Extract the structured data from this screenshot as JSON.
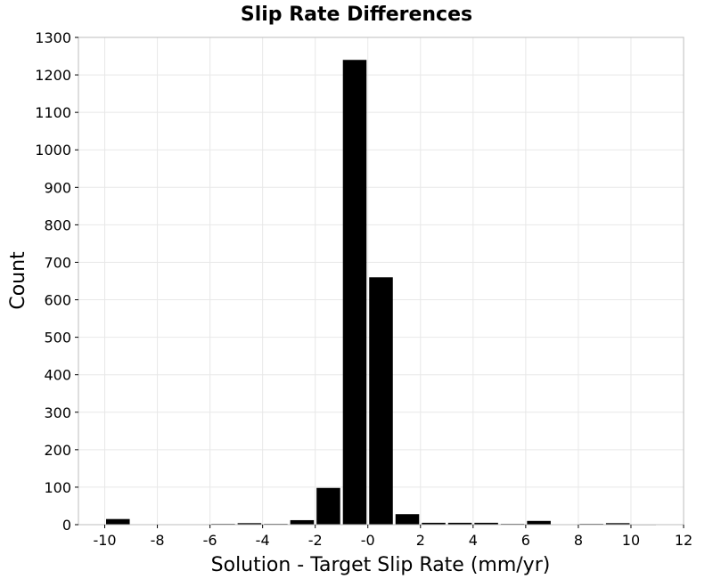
{
  "chart_data": {
    "type": "bar",
    "title": "Slip Rate Differences",
    "xlabel": "Solution - Target Slip Rate (mm/yr)",
    "ylabel": "Count",
    "xlim": [
      -11,
      12
    ],
    "ylim": [
      0,
      1300
    ],
    "grid": true,
    "xticks": [
      -10,
      -8,
      -6,
      -4,
      -2,
      0,
      2,
      4,
      6,
      8,
      10,
      12
    ],
    "xtick_labels": [
      "-10",
      "-8",
      "-6",
      "-4",
      "-2",
      "-0",
      "2",
      "4",
      "6",
      "8",
      "10",
      "12"
    ],
    "yticks": [
      0,
      100,
      200,
      300,
      400,
      500,
      600,
      700,
      800,
      900,
      1000,
      1100,
      1200,
      1300
    ],
    "bin_width": 1,
    "bins": [
      {
        "x": -9.5,
        "value": 15
      },
      {
        "x": -8.5,
        "value": 0
      },
      {
        "x": -7.5,
        "value": 0
      },
      {
        "x": -6.5,
        "value": 0
      },
      {
        "x": -5.5,
        "value": 2
      },
      {
        "x": -4.5,
        "value": 4
      },
      {
        "x": -3.5,
        "value": 2
      },
      {
        "x": -2.5,
        "value": 12
      },
      {
        "x": -1.5,
        "value": 98
      },
      {
        "x": -0.5,
        "value": 1240
      },
      {
        "x": 0.5,
        "value": 660
      },
      {
        "x": 1.5,
        "value": 28
      },
      {
        "x": 2.5,
        "value": 5
      },
      {
        "x": 3.5,
        "value": 5
      },
      {
        "x": 4.5,
        "value": 5
      },
      {
        "x": 5.5,
        "value": 2
      },
      {
        "x": 6.5,
        "value": 10
      },
      {
        "x": 7.5,
        "value": 0
      },
      {
        "x": 8.5,
        "value": 2
      },
      {
        "x": 9.5,
        "value": 4
      },
      {
        "x": 10.5,
        "value": 1
      }
    ]
  }
}
